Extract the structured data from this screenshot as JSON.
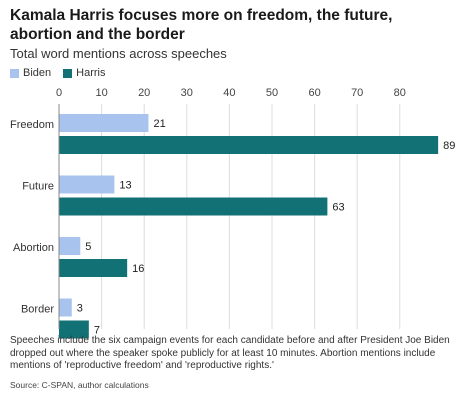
{
  "title": "Kamala Harris focuses more on freedom, the future, abortion and the border",
  "subtitle": "Total word mentions across speeches",
  "legend": [
    {
      "name": "Biden",
      "color": "#a8c4ee"
    },
    {
      "name": "Harris",
      "color": "#127175"
    }
  ],
  "footnote": "Speeches include the six campaign events for each candidate before and after President Joe Biden dropped out where the speaker spoke publicly for at least 10 minutes. Abortion mentions include mentions of 'reproductive freedom' and 'reproductive rights.'",
  "source": "Source: C-SPAN, author calculations",
  "chart_data": {
    "type": "bar",
    "orientation": "horizontal",
    "categories": [
      "Freedom",
      "Future",
      "Abortion",
      "Border"
    ],
    "series": [
      {
        "name": "Biden",
        "values": [
          21,
          13,
          5,
          3
        ],
        "color": "#a8c4ee"
      },
      {
        "name": "Harris",
        "values": [
          89,
          63,
          16,
          7
        ],
        "color": "#127175"
      }
    ],
    "xticks": [
      0,
      10,
      20,
      30,
      40,
      50,
      60,
      70,
      80
    ],
    "xlim": [
      0,
      90
    ],
    "grid": true,
    "legend_position": "top-left",
    "data_labels": true
  }
}
